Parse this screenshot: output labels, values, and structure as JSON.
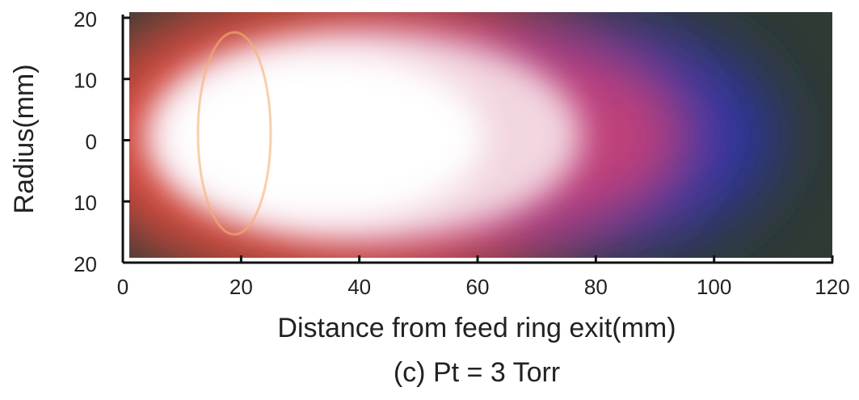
{
  "chart_data": {
    "type": "image",
    "title": "(c) Pt = 3 Torr",
    "xlabel": "Distance from feed ring exit(mm)",
    "ylabel": "Radius(mm)",
    "xlim": [
      0,
      120
    ],
    "xticks": [
      0,
      20,
      40,
      60,
      80,
      100,
      120
    ],
    "ylim": [
      -20,
      20
    ],
    "yticks": [
      {
        "value": -20,
        "label": "20"
      },
      {
        "value": -10,
        "label": "10"
      },
      0,
      10,
      20
    ]
  }
}
